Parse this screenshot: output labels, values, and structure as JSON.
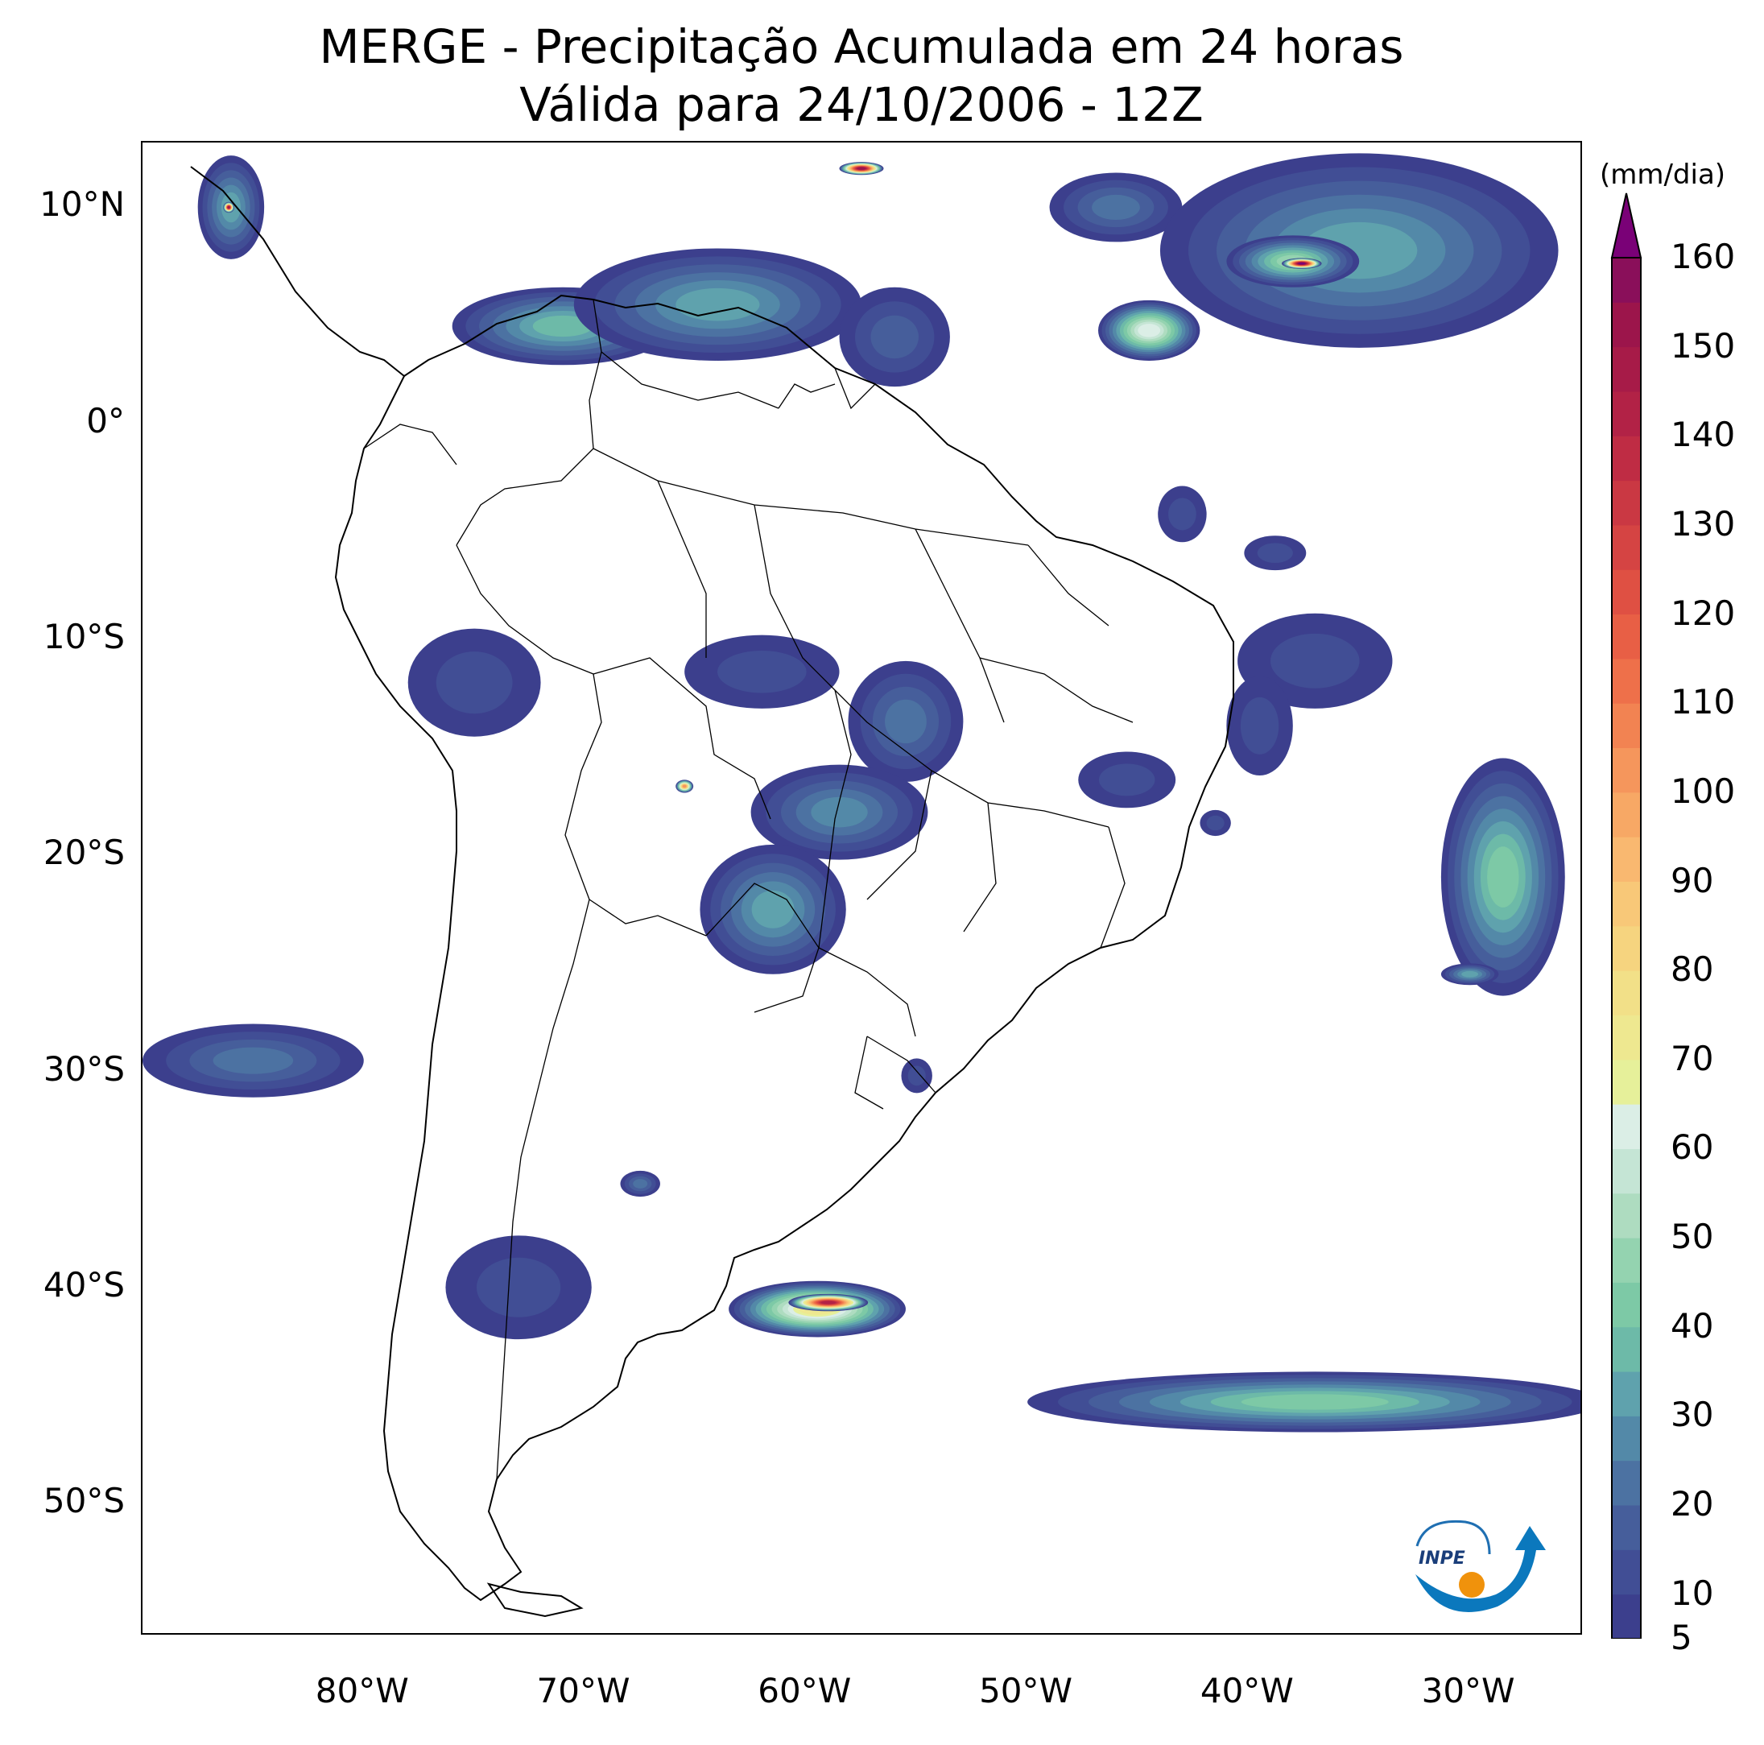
{
  "title": {
    "line1": "MERGE - Precipitação Acumulada em 24 horas",
    "line2": "Válida para 24/10/2006 - 12Z"
  },
  "map": {
    "extent": {
      "lon_min": -90,
      "lon_max": -25,
      "lat_min": -56,
      "lat_max": 13
    },
    "lat_labels": [
      {
        "value": 10,
        "text": "10°N"
      },
      {
        "value": 0,
        "text": "0°"
      },
      {
        "value": -10,
        "text": "10°S"
      },
      {
        "value": -20,
        "text": "20°S"
      },
      {
        "value": -30,
        "text": "30°S"
      },
      {
        "value": -40,
        "text": "40°S"
      },
      {
        "value": -50,
        "text": "50°S"
      }
    ],
    "lon_labels": [
      {
        "value": -80,
        "text": "80°W"
      },
      {
        "value": -70,
        "text": "70°W"
      },
      {
        "value": -60,
        "text": "60°W"
      },
      {
        "value": -50,
        "text": "50°W"
      },
      {
        "value": -40,
        "text": "40°W"
      },
      {
        "value": -30,
        "text": "30°W"
      }
    ],
    "precip_areas": [
      {
        "name": "caribbean-band",
        "lon": -46,
        "lat": 10,
        "rx": 3,
        "ry": 1.6,
        "intensity": 20
      },
      {
        "name": "itcz-east",
        "lon": -35,
        "lat": 8,
        "rx": 9,
        "ry": 4.5,
        "intensity": 30
      },
      {
        "name": "itcz-core",
        "lon": -38,
        "lat": 7.5,
        "rx": 3,
        "ry": 1.2,
        "intensity": 45
      },
      {
        "name": "atlantic-4n",
        "lon": -44.5,
        "lat": 4.3,
        "rx": 2.3,
        "ry": 1.4,
        "intensity": 60
      },
      {
        "name": "central-america",
        "lon": -86,
        "lat": 10,
        "rx": 1.5,
        "ry": 2.4,
        "intensity": 30
      },
      {
        "name": "colombia",
        "lon": -71,
        "lat": 4.5,
        "rx": 5,
        "ry": 1.8,
        "intensity": 35
      },
      {
        "name": "venezuela",
        "lon": -64,
        "lat": 5.5,
        "rx": 6.5,
        "ry": 2.6,
        "intensity": 30
      },
      {
        "name": "guyana",
        "lon": -56,
        "lat": 4,
        "rx": 2.5,
        "ry": 2.3,
        "intensity": 15
      },
      {
        "name": "maranhao",
        "lon": -43,
        "lat": -4.2,
        "rx": 1.1,
        "ry": 1.3,
        "intensity": 12
      },
      {
        "name": "northeast",
        "lon": -38.8,
        "lat": -6,
        "rx": 1.4,
        "ry": 0.8,
        "intensity": 12
      },
      {
        "name": "pernambuco-coast",
        "lon": -37,
        "lat": -11,
        "rx": 3.5,
        "ry": 2.2,
        "intensity": 12
      },
      {
        "name": "bahia-coast",
        "lon": -39.5,
        "lat": -14,
        "rx": 1.5,
        "ry": 2.3,
        "intensity": 12
      },
      {
        "name": "peru",
        "lon": -75,
        "lat": -12,
        "rx": 3,
        "ry": 2.5,
        "intensity": 10
      },
      {
        "name": "rondonia",
        "lon": -62,
        "lat": -11.5,
        "rx": 3.5,
        "ry": 1.7,
        "intensity": 12
      },
      {
        "name": "mato-grosso",
        "lon": -55.5,
        "lat": -13.8,
        "rx": 2.6,
        "ry": 2.8,
        "intensity": 22
      },
      {
        "name": "bolivia",
        "lon": -58.5,
        "lat": -18,
        "rx": 4,
        "ry": 2.2,
        "intensity": 25
      },
      {
        "name": "paraguay",
        "lon": -61.5,
        "lat": -22.5,
        "rx": 3.3,
        "ry": 3,
        "intensity": 30
      },
      {
        "name": "goias",
        "lon": -45.5,
        "lat": -16.5,
        "rx": 2.2,
        "ry": 1.3,
        "intensity": 12
      },
      {
        "name": "minas",
        "lon": -41.5,
        "lat": -18.5,
        "rx": 0.7,
        "ry": 0.6,
        "intensity": 10
      },
      {
        "name": "rs",
        "lon": -55,
        "lat": -30.2,
        "rx": 0.7,
        "ry": 0.8,
        "intensity": 12
      },
      {
        "name": "pacific-30s",
        "lon": -85,
        "lat": -29.5,
        "rx": 5,
        "ry": 1.7,
        "intensity": 20
      },
      {
        "name": "chile-40s",
        "lon": -73,
        "lat": -40,
        "rx": 3.3,
        "ry": 2.4,
        "intensity": 12
      },
      {
        "name": "atlantic-east-20s",
        "lon": -28.5,
        "lat": -21,
        "rx": 2.8,
        "ry": 5.5,
        "intensity": 40
      },
      {
        "name": "atlantic-26s",
        "lon": -30,
        "lat": -25.5,
        "rx": 1.3,
        "ry": 0.5,
        "intensity": 30
      },
      {
        "name": "san-matias",
        "lon": -59.5,
        "lat": -41,
        "rx": 4,
        "ry": 1.3,
        "intensity": 70
      },
      {
        "name": "san-matias-core",
        "lon": -59,
        "lat": -40.7,
        "rx": 1.8,
        "ry": 0.4,
        "intensity": 140
      },
      {
        "name": "south-atlantic-band",
        "lon": -37,
        "lat": -45.3,
        "rx": 13,
        "ry": 1.4,
        "intensity": 40
      },
      {
        "name": "north-argentina",
        "lon": -67.5,
        "lat": -35.2,
        "rx": 0.9,
        "ry": 0.6,
        "intensity": 20
      },
      {
        "name": "pacific-10n-hot",
        "lon": -86.1,
        "lat": 10,
        "rx": 0.25,
        "ry": 0.25,
        "intensity": 150
      },
      {
        "name": "caribbean-hot",
        "lon": -57.5,
        "lat": 11.8,
        "rx": 1,
        "ry": 0.3,
        "intensity": 150
      },
      {
        "name": "itcz-hot",
        "lon": -37.6,
        "lat": 7.4,
        "rx": 0.9,
        "ry": 0.25,
        "intensity": 160
      },
      {
        "name": "bolivia-hot",
        "lon": -65.5,
        "lat": -16.8,
        "rx": 0.4,
        "ry": 0.3,
        "intensity": 100
      }
    ],
    "logo_text": "INPE"
  },
  "colorbar": {
    "units": "(mm/dia)",
    "min": 5,
    "max": 160,
    "levels": [
      5,
      10,
      15,
      20,
      25,
      30,
      35,
      40,
      45,
      50,
      55,
      60,
      65,
      70,
      75,
      80,
      85,
      90,
      95,
      100,
      105,
      110,
      115,
      120,
      125,
      130,
      135,
      140,
      145,
      150,
      155,
      160
    ],
    "colors": [
      "#3c3f8d",
      "#414e95",
      "#465e9b",
      "#4c72a2",
      "#5389a8",
      "#5fa2ad",
      "#6dbaa8",
      "#7dc9a6",
      "#94d3b0",
      "#aedcc0",
      "#c5e5d5",
      "#dbeee6",
      "#e6f09a",
      "#eee890",
      "#f2e088",
      "#f6d47f",
      "#f8c878",
      "#f9b870",
      "#f7a865",
      "#f5965c",
      "#f28352",
      "#ee704a",
      "#e85f45",
      "#df5043",
      "#d54443",
      "#ca3843",
      "#bf2c44",
      "#b22246",
      "#a71b48",
      "#9c154b",
      "#8a0f5a"
    ],
    "extend_color": "#7a0177",
    "ticks": [
      {
        "value": 5,
        "text": "5"
      },
      {
        "value": 10,
        "text": "10"
      },
      {
        "value": 20,
        "text": "20"
      },
      {
        "value": 30,
        "text": "30"
      },
      {
        "value": 40,
        "text": "40"
      },
      {
        "value": 50,
        "text": "50"
      },
      {
        "value": 60,
        "text": "60"
      },
      {
        "value": 70,
        "text": "70"
      },
      {
        "value": 80,
        "text": "80"
      },
      {
        "value": 90,
        "text": "90"
      },
      {
        "value": 100,
        "text": "100"
      },
      {
        "value": 110,
        "text": "110"
      },
      {
        "value": 120,
        "text": "120"
      },
      {
        "value": 130,
        "text": "130"
      },
      {
        "value": 140,
        "text": "140"
      },
      {
        "value": 150,
        "text": "150"
      },
      {
        "value": 160,
        "text": "160"
      }
    ]
  }
}
